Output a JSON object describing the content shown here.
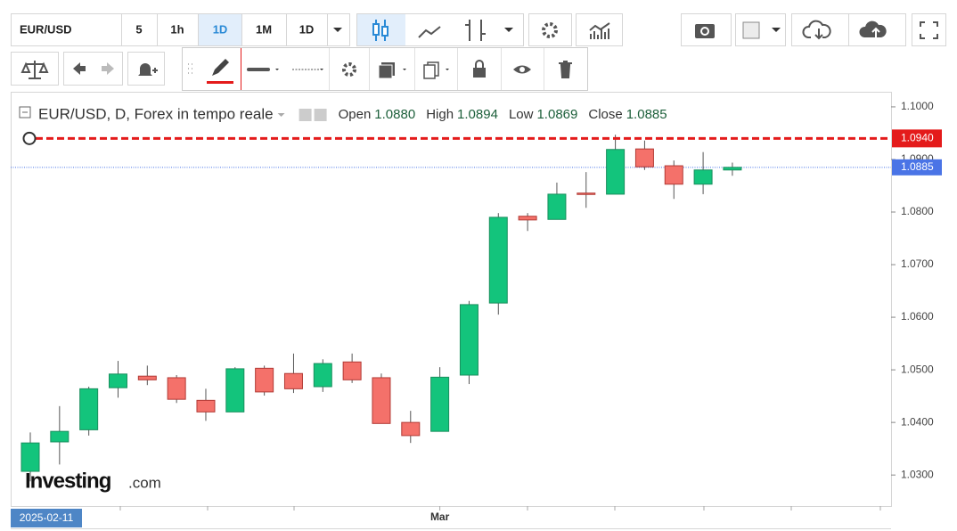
{
  "toolbar": {
    "symbol": "EUR/USD",
    "intervals": [
      "5",
      "1h",
      "1D",
      "1M",
      "1D"
    ]
  },
  "logo": {
    "brand": "Investing",
    "suffix": ".com"
  },
  "chart_data": {
    "type": "candlestick",
    "title": "EUR/USD, D, Forex in tempo reale",
    "legend": [
      {
        "name": "Open",
        "value": "1.0880"
      },
      {
        "name": "High",
        "value": "1.0894"
      },
      {
        "name": "Low",
        "value": "1.0869"
      },
      {
        "name": "Close",
        "value": "1.0885"
      }
    ],
    "categories": [
      "2025-02-11",
      null,
      null,
      null,
      null,
      null,
      null,
      null,
      null,
      null,
      null,
      null,
      null,
      null,
      "Mar",
      null,
      null,
      null,
      null,
      null,
      null,
      null,
      null,
      null,
      null
    ],
    "open": [
      1.0307,
      1.0363,
      1.0386,
      1.0466,
      1.0488,
      1.0485,
      1.0442,
      1.042,
      1.0503,
      1.0493,
      1.0468,
      1.0515,
      1.0485,
      1.04,
      1.0383,
      1.049,
      1.0627,
      1.0792,
      1.0786,
      1.0836,
      1.0834,
      1.092,
      1.0888,
      1.0853,
      1.088
    ],
    "high": [
      1.0381,
      1.0431,
      1.0468,
      1.0517,
      1.0508,
      1.049,
      1.0464,
      1.0505,
      1.0508,
      1.0531,
      1.052,
      1.0531,
      1.0493,
      1.0422,
      1.0505,
      1.0631,
      1.0798,
      1.0798,
      1.0856,
      1.0876,
      1.0947,
      1.0936,
      1.0898,
      1.0914,
      1.0894
    ],
    "low": [
      1.0288,
      1.032,
      1.0375,
      1.0447,
      1.0471,
      1.0437,
      1.0403,
      1.042,
      1.0451,
      1.0456,
      1.0458,
      1.0475,
      1.0398,
      1.0361,
      1.0383,
      1.0473,
      1.0605,
      1.0764,
      1.0786,
      1.0808,
      1.0834,
      1.088,
      1.0825,
      1.0834,
      1.0869
    ],
    "close": [
      1.0361,
      1.0383,
      1.0464,
      1.0492,
      1.0481,
      1.0444,
      1.042,
      1.0502,
      1.0458,
      1.0464,
      1.0512,
      1.0481,
      1.0398,
      1.0375,
      1.0486,
      1.0624,
      1.079,
      1.0785,
      1.0834,
      1.0834,
      1.0919,
      1.0886,
      1.0853,
      1.088,
      1.0885
    ],
    "up_color": "#13c47c",
    "down_color": "#f4716a",
    "ylim": [
      1.0241,
      1.1027
    ],
    "yticks": [
      {
        "value": 1.03,
        "label": "1.0300"
      },
      {
        "value": 1.04,
        "label": "1.0400"
      },
      {
        "value": 1.05,
        "label": "1.0500"
      },
      {
        "value": 1.06,
        "label": "1.0600"
      },
      {
        "value": 1.07,
        "label": "1.0700"
      },
      {
        "value": 1.08,
        "label": "1.0800"
      },
      {
        "value": 1.09,
        "label": "1.0900"
      },
      {
        "value": 1.1,
        "label": "1.1000"
      }
    ],
    "hline": {
      "value": 1.094,
      "label": "1.0940",
      "color": "#e41b1b"
    },
    "last_price": {
      "value": 1.0885,
      "label": "1.0885",
      "color": "#4a74e6"
    }
  }
}
